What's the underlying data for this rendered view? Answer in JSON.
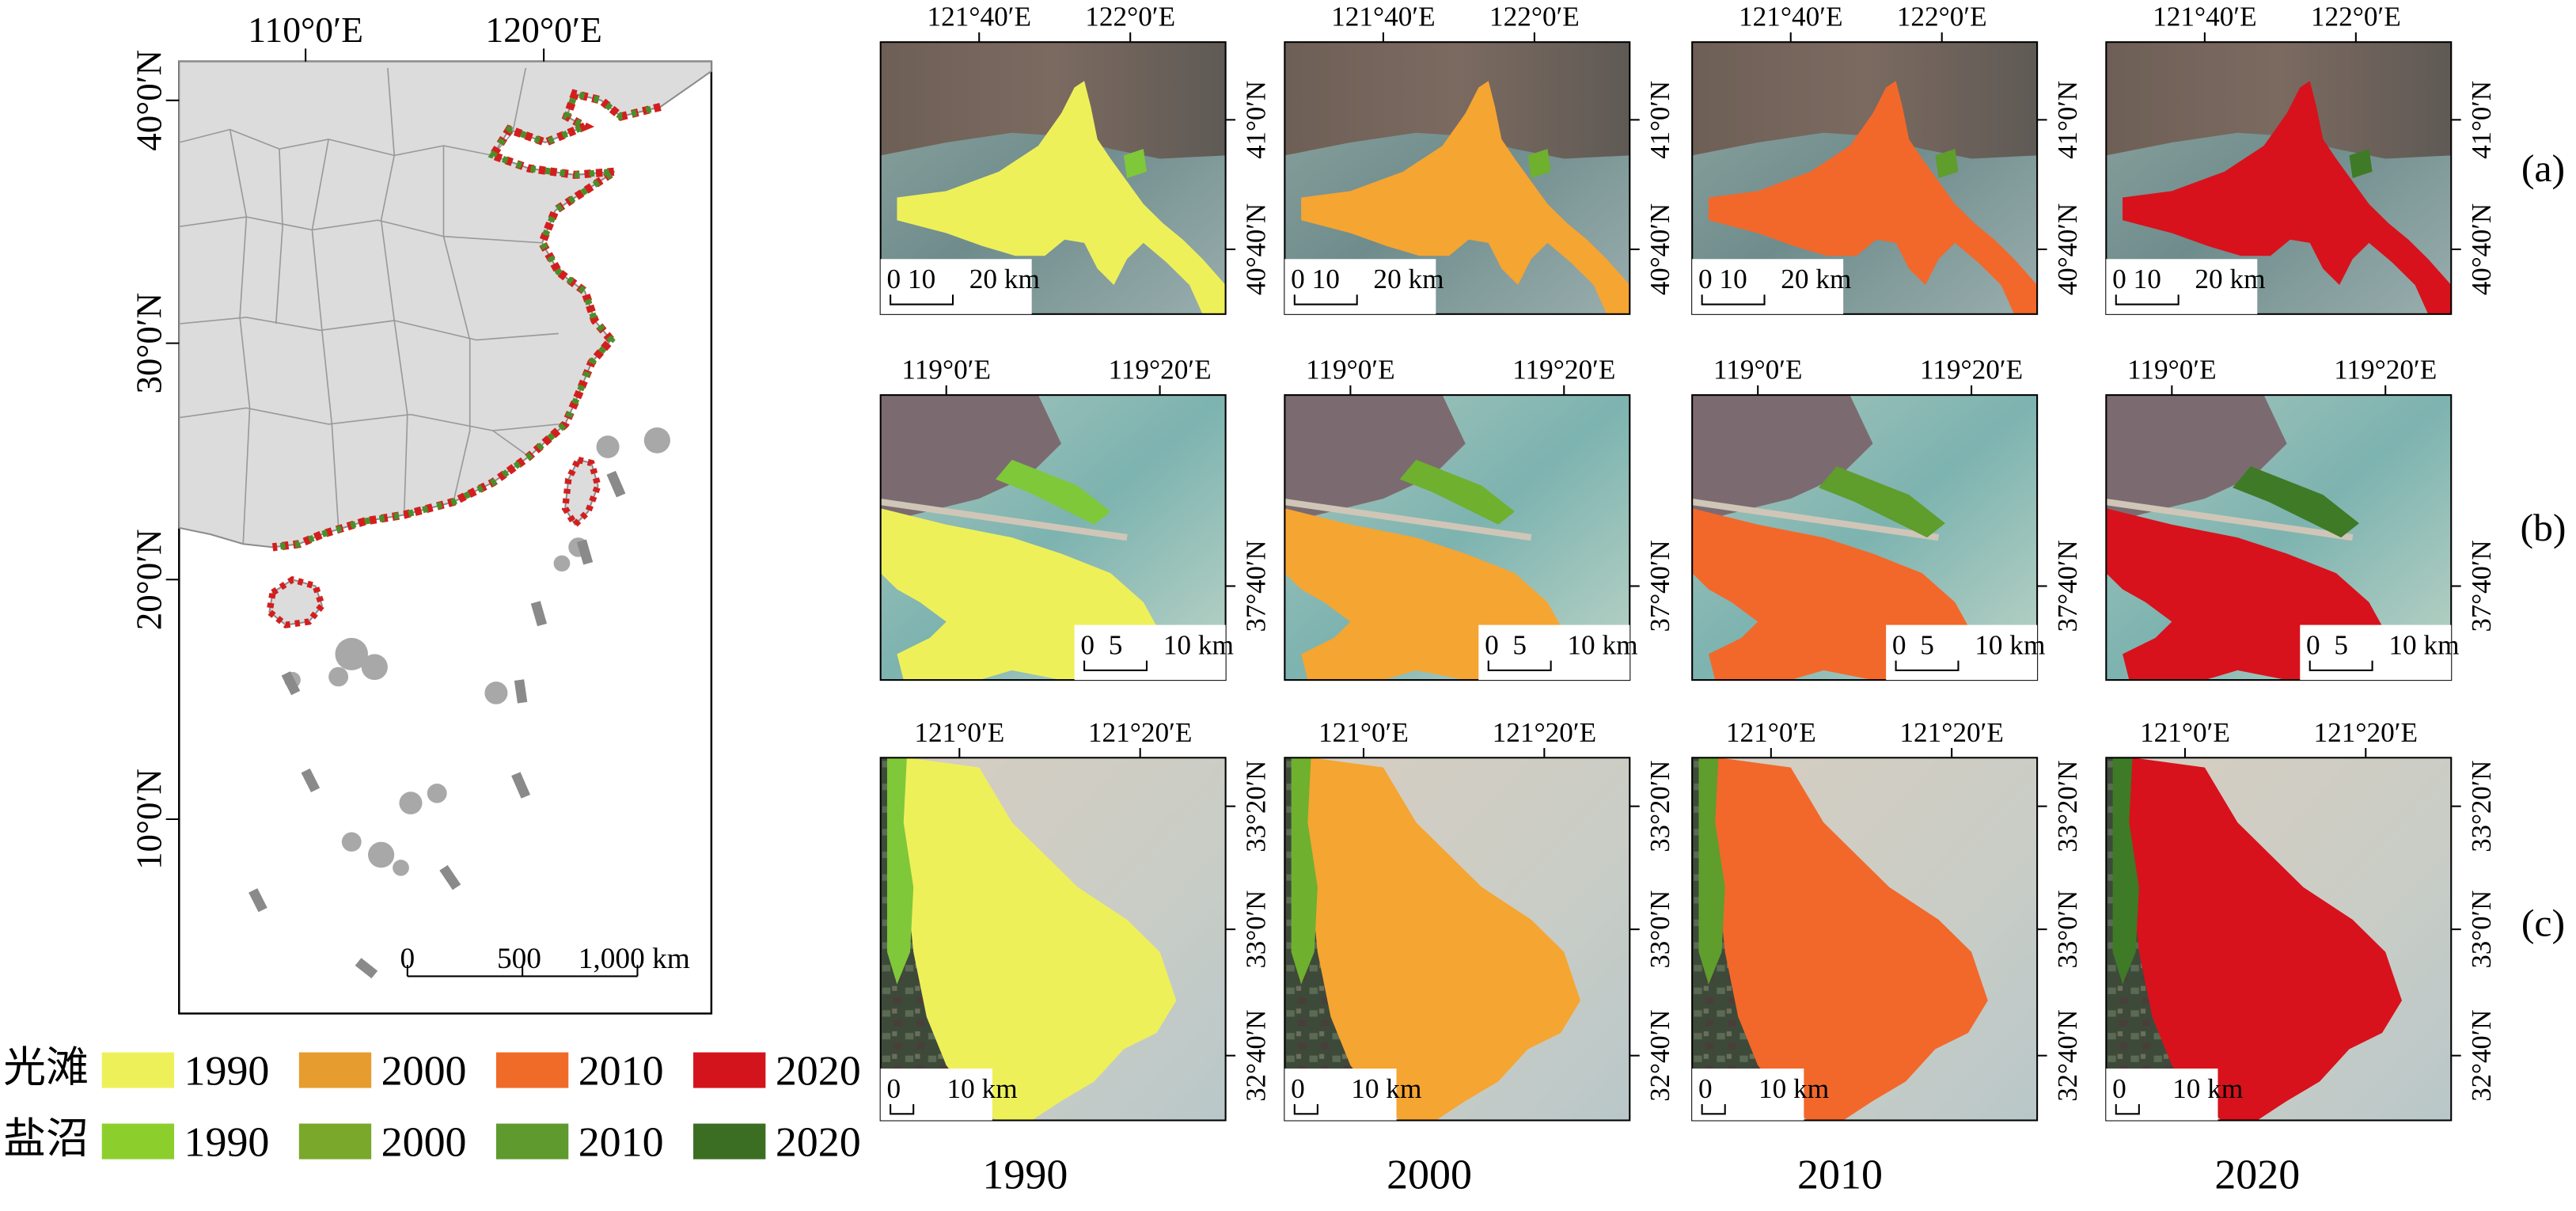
{
  "overview": {
    "lon_labels": [
      "110°0′E",
      "120°0′E"
    ],
    "lat_labels": [
      "40°0′N",
      "30°0′N",
      "20°0′N",
      "10°0′N"
    ],
    "scale": {
      "zero": "0",
      "mid": "500",
      "end": "1,000 km"
    }
  },
  "legend": {
    "row1": {
      "label": "光滩",
      "items": [
        {
          "year": "1990",
          "color": "#eef05a"
        },
        {
          "year": "2000",
          "color": "#e69c2e"
        },
        {
          "year": "2010",
          "color": "#f06a28"
        },
        {
          "year": "2020",
          "color": "#d4141c"
        }
      ]
    },
    "row2": {
      "label": "盐沼",
      "items": [
        {
          "year": "1990",
          "color": "#8ccf2c"
        },
        {
          "year": "2000",
          "color": "#7aa82a"
        },
        {
          "year": "2010",
          "color": "#5e9a2e"
        },
        {
          "year": "2020",
          "color": "#3b6e22"
        }
      ]
    }
  },
  "rows": [
    {
      "tag": "(a)",
      "lon": [
        "121°40′E",
        "122°0′E"
      ],
      "lat": [
        "41°0′N",
        "40°40′N"
      ],
      "scale": [
        "0",
        "10",
        "20 km"
      ]
    },
    {
      "tag": "(b)",
      "lon": [
        "119°0′E",
        "119°20′E"
      ],
      "lat": [
        "37°40′N"
      ],
      "scale": [
        "0",
        "5",
        "10 km"
      ]
    },
    {
      "tag": "(c)",
      "lon": [
        "121°0′E",
        "121°20′E"
      ],
      "lat": [
        "33°20′N",
        "33°0′N",
        "32°40′N"
      ],
      "scale": [
        "0",
        "10 km"
      ]
    }
  ],
  "years": [
    "1990",
    "2000",
    "2010",
    "2020"
  ],
  "flat_colors": [
    "#eef05a",
    "#f5a531",
    "#f2682a",
    "#d7121c"
  ],
  "marsh_colors": [
    "#7fc83a",
    "#6fb02f",
    "#5f9d2c",
    "#3f7a26"
  ],
  "coast_markers": {
    "flat": "#d41e1e",
    "marsh": "#4a8f2a",
    "other": "#a8a8a8"
  }
}
